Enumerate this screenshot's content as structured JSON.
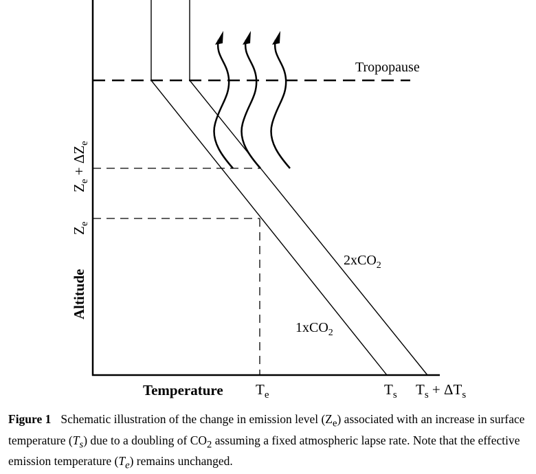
{
  "labels": {
    "tropopause": "Tropopause",
    "altitude": "Altitude",
    "temperature": "Temperature",
    "line_2x_base": "2xCO",
    "line_2x_sub": "2",
    "line_1x_base": "1xCO",
    "line_1x_sub": "2",
    "ze_base": "Z",
    "ze_sub": "e",
    "ze_dz_base": "Z",
    "ze_dz_sub": "e",
    "ze_dz_plus": " + ΔZ",
    "ze_dz_sub2": "e",
    "te_base": "T",
    "te_sub": "e",
    "ts_base": "T",
    "ts_sub": "s",
    "tsdt_base": "T",
    "tsdt_sub": "s",
    "tsdt_plus": " + ΔT",
    "tsdt_sub2": "s"
  },
  "caption": {
    "title": "Figure 1",
    "p1": "Schematic illustration of the change in emission level (Z",
    "p1_sub": "e",
    "p2": ") associated with an increase in surface temperature (",
    "p2_it": "T",
    "p2_it_sub": "s",
    "p3": ") due to a doubling of CO",
    "p3_sub": "2",
    "p4": " assuming a fixed atmospheric lapse rate. Note that the effective emission temperature (",
    "p4_it": "T",
    "p4_it_sub": "e",
    "p5": ") remains unchanged."
  }
}
